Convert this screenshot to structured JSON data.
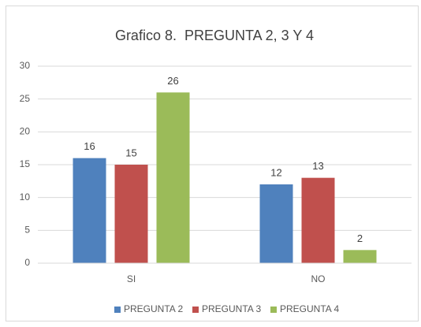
{
  "chart_data": {
    "type": "bar",
    "title": "Grafico 8.  PREGUNTA 2, 3 Y 4",
    "categories": [
      "SI",
      "NO"
    ],
    "series": [
      {
        "name": "PREGUNTA 2",
        "color": "#4f81bd",
        "values": [
          16,
          12
        ]
      },
      {
        "name": "PREGUNTA 3",
        "color": "#c0504d",
        "values": [
          15,
          13
        ]
      },
      {
        "name": "PREGUNTA 4",
        "color": "#9bbb59",
        "values": [
          26,
          2
        ]
      }
    ],
    "ylim": [
      0,
      30
    ],
    "yticks": [
      0,
      5,
      10,
      15,
      20,
      25,
      30
    ],
    "grid": true,
    "legend": "bottom"
  }
}
